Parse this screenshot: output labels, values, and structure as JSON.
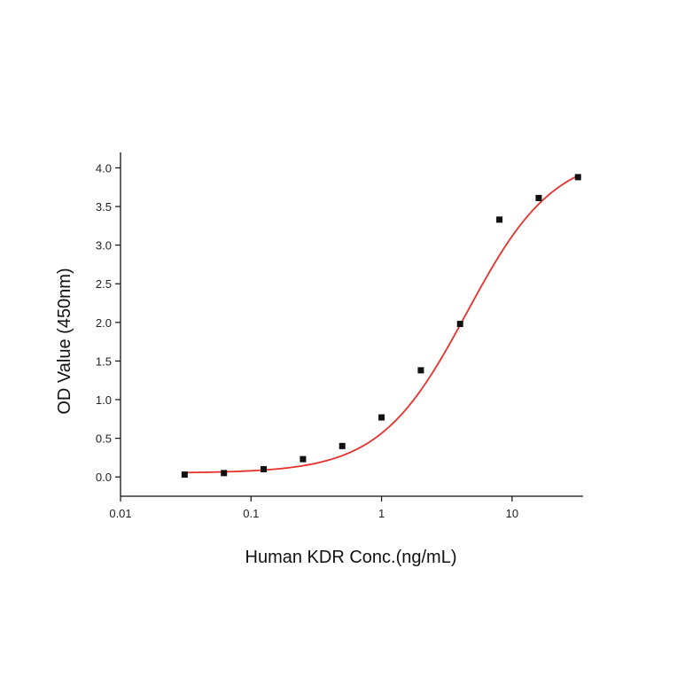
{
  "chart_data": {
    "type": "scatter",
    "title": "",
    "xlabel": "Human KDR Conc.(ng/mL)",
    "ylabel": "OD Value (450nm)",
    "x_scale": "log",
    "xlim": [
      0.01,
      35
    ],
    "ylim": [
      -0.25,
      4.2
    ],
    "x_ticks": [
      {
        "value": 0.01,
        "label": "0.01"
      },
      {
        "value": 0.1,
        "label": "0.1"
      },
      {
        "value": 1,
        "label": "1"
      },
      {
        "value": 10,
        "label": "10"
      }
    ],
    "y_ticks": [
      {
        "value": 0.0,
        "label": "0.0"
      },
      {
        "value": 0.5,
        "label": "0.5"
      },
      {
        "value": 1.0,
        "label": "1.0"
      },
      {
        "value": 1.5,
        "label": "1.5"
      },
      {
        "value": 2.0,
        "label": "2.0"
      },
      {
        "value": 2.5,
        "label": "2.5"
      },
      {
        "value": 3.0,
        "label": "3.0"
      },
      {
        "value": 3.5,
        "label": "3.5"
      },
      {
        "value": 4.0,
        "label": "4.0"
      }
    ],
    "grid": false,
    "series": [
      {
        "type": "scatter",
        "color": "#111111",
        "points": [
          {
            "x": 0.031,
            "y": 0.03
          },
          {
            "x": 0.062,
            "y": 0.05
          },
          {
            "x": 0.125,
            "y": 0.1
          },
          {
            "x": 0.25,
            "y": 0.23
          },
          {
            "x": 0.5,
            "y": 0.4
          },
          {
            "x": 1.0,
            "y": 0.77
          },
          {
            "x": 2.0,
            "y": 1.38
          },
          {
            "x": 4.0,
            "y": 1.98
          },
          {
            "x": 8.0,
            "y": 3.33
          },
          {
            "x": 16.0,
            "y": 3.61
          },
          {
            "x": 32.0,
            "y": 3.88
          }
        ]
      },
      {
        "type": "line",
        "color": "#e8302c",
        "fit": {
          "model": "4PL",
          "bottom": 0.05,
          "top": 4.2,
          "ec50": 4.5,
          "hill": 1.3
        }
      }
    ]
  }
}
